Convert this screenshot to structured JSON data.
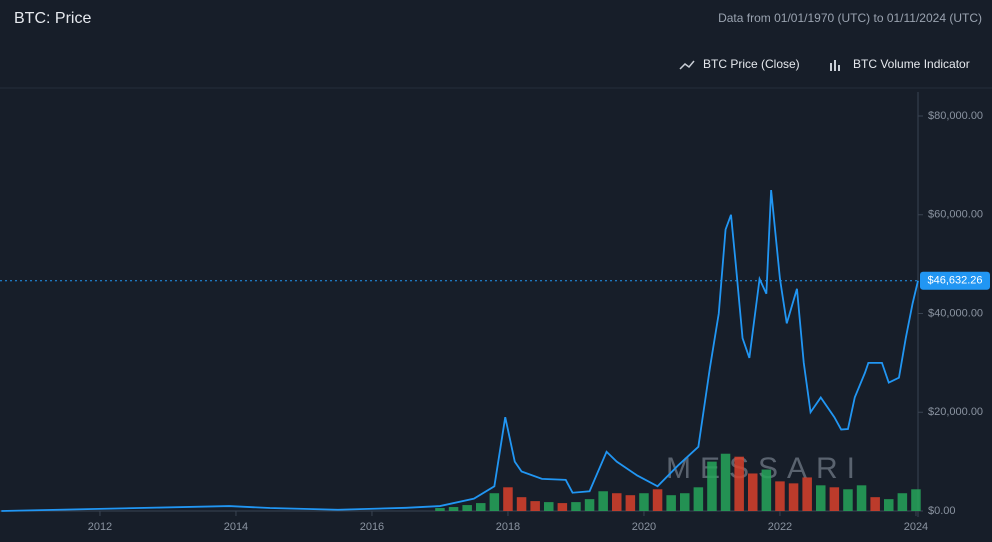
{
  "chart_data": {
    "type": "line",
    "title": "BTC: Price",
    "subtitle": "Data from 01/01/1970 (UTC) to 01/11/2024 (UTC)",
    "watermark": "MESSARI",
    "xlim": [
      2010.53,
      2024.03
    ],
    "xticks": [
      2012,
      2014,
      2016,
      2018,
      2020,
      2022,
      2024
    ],
    "ylim": [
      0,
      80000
    ],
    "yticks": [
      {
        "value": 0,
        "label": "$0.00"
      },
      {
        "value": 20000,
        "label": "$20,000.00"
      },
      {
        "value": 40000,
        "label": "$40,000.00"
      },
      {
        "value": 60000,
        "label": "$60,000.00"
      },
      {
        "value": 80000,
        "label": "$80,000.00"
      }
    ],
    "y2lim": [
      0,
      400
    ],
    "grid": false,
    "last_value": 46632.26,
    "last_value_label": "$46,632.26",
    "series": [
      {
        "name": "BTC Price (Close)",
        "color": "#2196f3",
        "x": [
          2010.55,
          2013.9,
          2014.5,
          2015.5,
          2016.5,
          2017.0,
          2017.5,
          2017.8,
          2017.96,
          2018.1,
          2018.2,
          2018.5,
          2018.85,
          2018.95,
          2019.2,
          2019.45,
          2019.6,
          2019.9,
          2020.2,
          2020.5,
          2020.8,
          2020.97,
          2021.1,
          2021.2,
          2021.28,
          2021.35,
          2021.45,
          2021.55,
          2021.7,
          2021.8,
          2021.87,
          2022.0,
          2022.1,
          2022.25,
          2022.35,
          2022.45,
          2022.6,
          2022.8,
          2022.9,
          2023.0,
          2023.1,
          2023.25,
          2023.3,
          2023.5,
          2023.6,
          2023.75,
          2023.85,
          2023.95,
          2024.03
        ],
        "values": [
          0,
          1000,
          600,
          250,
          650,
          1000,
          2500,
          5000,
          19000,
          10000,
          8000,
          6500,
          6300,
          3700,
          4000,
          12000,
          10000,
          7200,
          5000,
          9200,
          13000,
          29000,
          40000,
          57000,
          60000,
          50000,
          35000,
          31000,
          47000,
          44000,
          65000,
          47000,
          38000,
          45000,
          30000,
          20000,
          23000,
          19000,
          16500,
          16600,
          23000,
          28000,
          30000,
          30000,
          26000,
          27000,
          35000,
          42000,
          46632.26
        ]
      },
      {
        "name": "BTC Volume Indicator",
        "color": "#26a65b",
        "axis": "y2",
        "x": [
          2017.0,
          2017.2,
          2017.4,
          2017.6,
          2017.8,
          2018.0,
          2018.2,
          2018.4,
          2018.6,
          2018.8,
          2019.0,
          2019.2,
          2019.4,
          2019.6,
          2019.8,
          2020.0,
          2020.2,
          2020.4,
          2020.6,
          2020.8,
          2021.0,
          2021.2,
          2021.4,
          2021.6,
          2021.8,
          2022.0,
          2022.2,
          2022.4,
          2022.6,
          2022.8,
          2023.0,
          2023.2,
          2023.4,
          2023.6,
          2023.8,
          2024.0
        ],
        "values": [
          3,
          4,
          6,
          8,
          18,
          24,
          14,
          10,
          9,
          8,
          9,
          12,
          20,
          18,
          16,
          18,
          22,
          16,
          18,
          24,
          50,
          58,
          55,
          38,
          42,
          30,
          28,
          34,
          26,
          24,
          22,
          26,
          14,
          12,
          18,
          22
        ],
        "colors": [
          "#26a65b",
          "#26a65b",
          "#26a65b",
          "#26a65b",
          "#26a65b",
          "#d9412b",
          "#d9412b",
          "#d9412b",
          "#26a65b",
          "#d9412b",
          "#26a65b",
          "#26a65b",
          "#26a65b",
          "#d9412b",
          "#d9412b",
          "#26a65b",
          "#d9412b",
          "#26a65b",
          "#26a65b",
          "#26a65b",
          "#26a65b",
          "#26a65b",
          "#d9412b",
          "#d9412b",
          "#26a65b",
          "#d9412b",
          "#d9412b",
          "#d9412b",
          "#26a65b",
          "#d9412b",
          "#26a65b",
          "#26a65b",
          "#d9412b",
          "#26a65b",
          "#26a65b",
          "#26a65b"
        ]
      }
    ]
  }
}
